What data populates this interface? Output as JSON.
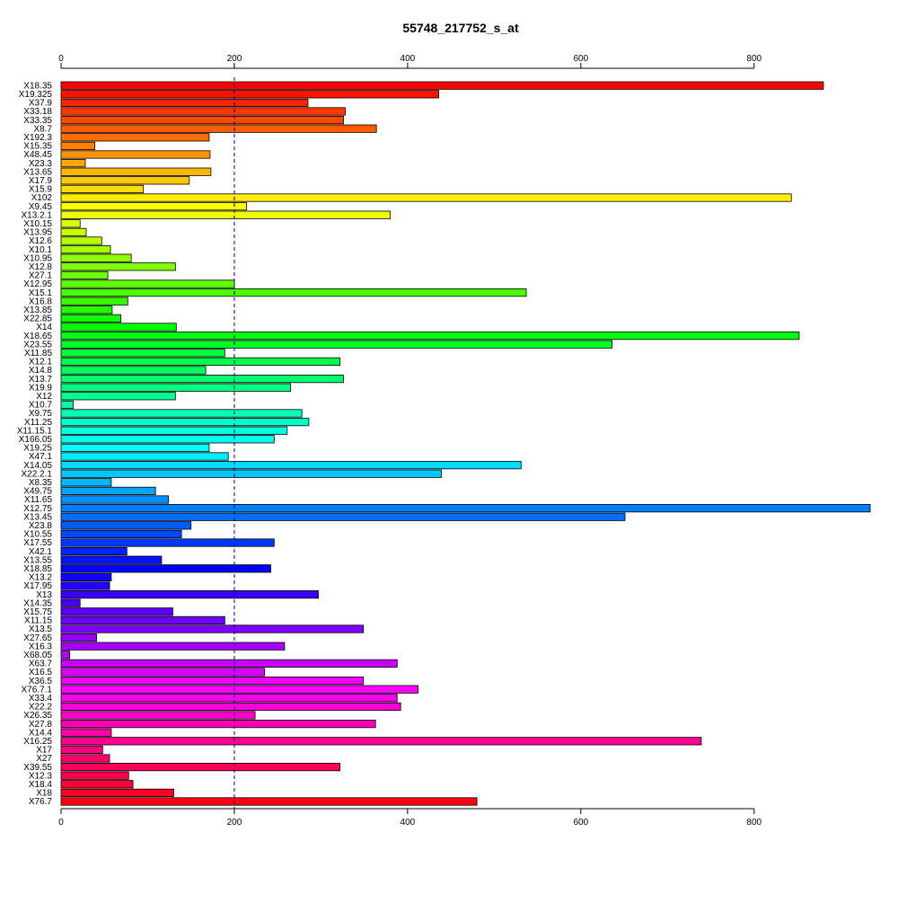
{
  "chart_data": {
    "type": "bar",
    "orientation": "horizontal",
    "title": "55748_217752_s_at",
    "xlabel": "",
    "ylabel": "",
    "xlim": [
      0,
      935
    ],
    "xticks": [
      0,
      200,
      400,
      600,
      800
    ],
    "xtick_labels": [
      "0",
      "200",
      "400",
      "600",
      "800"
    ],
    "axis_positions": [
      "top",
      "bottom"
    ],
    "reference_line": {
      "value": 200,
      "style": "dashed",
      "color": "#00008B"
    },
    "grid": false,
    "legend": "none",
    "bar_colors": "rainbow",
    "categories": [
      "X18.35",
      "X19.325",
      "X37.9",
      "X33.18",
      "X33.35",
      "X8.7",
      "X192.3",
      "X15.35",
      "X48.45",
      "X23.3",
      "X13.65",
      "X17.9",
      "X15.9",
      "X102",
      "X9.45",
      "X13.2.1",
      "X10.15",
      "X13.95",
      "X12.6",
      "X10.1",
      "X10.95",
      "X12.8",
      "X27.1",
      "X12.95",
      "X15.1",
      "X16.8",
      "X13.85",
      "X22.85",
      "X14",
      "X18.65",
      "X23.55",
      "X11.85",
      "X12.1",
      "X14.8",
      "X13.7",
      "X19.9",
      "X12",
      "X10.7",
      "X9.75",
      "X11.25",
      "X11.15.1",
      "X166.05",
      "X19.25",
      "X47.1",
      "X14.05",
      "X22.2.1",
      "X8.35",
      "X49.75",
      "X11.65",
      "X12.75",
      "X13.45",
      "X23.8",
      "X10.55",
      "X17.55",
      "X42.1",
      "X13.55",
      "X18.85",
      "X13.2",
      "X17.95",
      "X13",
      "X14.35",
      "X15.75",
      "X11.15",
      "X13.5",
      "X27.65",
      "X16.3",
      "X68.05",
      "X63.7",
      "X16.5",
      "X36.5",
      "X76.7.1",
      "X33.4",
      "X22.2",
      "X26.35",
      "X27.8",
      "X14.4",
      "X16.25",
      "X17",
      "X27",
      "X39.55",
      "X12.3",
      "X18.4",
      "X18",
      "X76.7"
    ],
    "values": [
      880,
      436,
      285,
      328,
      326,
      364,
      171,
      39,
      172,
      28,
      173,
      148,
      95,
      843,
      214,
      380,
      22,
      29,
      47,
      57,
      81,
      132,
      54,
      200,
      537,
      77,
      59,
      69,
      133,
      852,
      636,
      189,
      322,
      167,
      326,
      265,
      132,
      14,
      278,
      286,
      261,
      246,
      171,
      193,
      531,
      439,
      58,
      109,
      124,
      934,
      651,
      150,
      139,
      246,
      76,
      116,
      242,
      58,
      56,
      297,
      22,
      129,
      189,
      349,
      41,
      258,
      10,
      388,
      235,
      349,
      412,
      388,
      392,
      224,
      363,
      58,
      739,
      48,
      56,
      322,
      78,
      83,
      130,
      480
    ]
  }
}
